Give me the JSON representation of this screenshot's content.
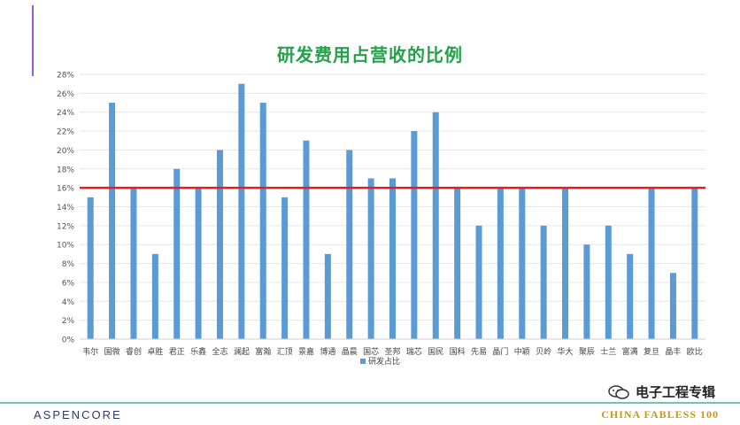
{
  "header": {
    "title": "研发费用占营收的比例"
  },
  "colors": {
    "bar": "#5b9bd5",
    "threshold": "#e02020",
    "grid": "#e6e6e6",
    "title": "#22a34a"
  },
  "chart_data": {
    "type": "bar",
    "title": "研发费用占营收的比例",
    "categories": [
      "韦尔",
      "国微",
      "睿创",
      "卓胜",
      "君正",
      "乐鑫",
      "全志",
      "澜起",
      "富瀚",
      "汇顶",
      "景嘉",
      "博通",
      "晶晨",
      "国芯",
      "圣邦",
      "瑞芯",
      "国民",
      "国科",
      "先易",
      "晶门",
      "中颖",
      "贝岭",
      "华大",
      "聚辰",
      "士兰",
      "富满",
      "复旦",
      "晶丰",
      "欧比"
    ],
    "series": [
      {
        "name": "研发占比",
        "values": [
          15,
          25,
          16,
          9,
          18,
          16,
          20,
          27,
          25,
          15,
          21,
          9,
          20,
          17,
          17,
          22,
          24,
          16,
          12,
          16,
          16,
          12,
          16,
          10,
          12,
          9,
          16,
          7,
          16
        ]
      }
    ],
    "y_tick_labels": [
      "0%",
      "2%",
      "4%",
      "6%",
      "8%",
      "10%",
      "12%",
      "14%",
      "16%",
      "18%",
      "20%",
      "22%",
      "24%",
      "26%",
      "28%"
    ],
    "ylim": [
      0,
      28
    ],
    "reference_line": 16,
    "legend": {
      "label": "研发占比",
      "position": "bottom"
    },
    "grid": true
  },
  "footer": {
    "brand_left": "ASPENCORE",
    "brand_right": "CHINA FABLESS 100",
    "watermark": "电子工程专辑",
    "watermark_icon": "wechat-icon"
  }
}
